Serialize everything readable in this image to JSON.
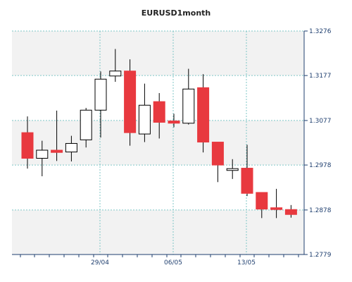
{
  "chart_data": {
    "type": "candlestick",
    "title": "EURUSD1month",
    "xlabel": "",
    "ylabel": "",
    "ylim": [
      1.2779,
      1.3276
    ],
    "y_ticks": [
      "1.3276",
      "1.3177",
      "1.3077",
      "1.2978",
      "1.2878",
      "1.2779"
    ],
    "x_ticks": [
      {
        "label": "29/04",
        "index": 5
      },
      {
        "label": "06/05",
        "index": 10
      },
      {
        "label": "13/05",
        "index": 15
      }
    ],
    "grid": true,
    "y_axis_side": "right",
    "colors": {
      "up_fill": "#ffffff",
      "up_stroke": "#000000",
      "down_fill": "#e8393f",
      "grid": "#7fc7c7",
      "band": "#f2f2f2",
      "axis": "#1f3f6f"
    },
    "candles": [
      {
        "open": 1.305,
        "high": 1.3086,
        "low": 1.297,
        "close": 1.2993
      },
      {
        "open": 1.2993,
        "high": 1.3032,
        "low": 1.2953,
        "close": 1.3011
      },
      {
        "open": 1.3011,
        "high": 1.3099,
        "low": 1.2987,
        "close": 1.3006
      },
      {
        "open": 1.3007,
        "high": 1.3043,
        "low": 1.2986,
        "close": 1.3026
      },
      {
        "open": 1.3034,
        "high": 1.3105,
        "low": 1.3017,
        "close": 1.31
      },
      {
        "open": 1.31,
        "high": 1.3186,
        "low": 1.3039,
        "close": 1.3169
      },
      {
        "open": 1.3176,
        "high": 1.3236,
        "low": 1.3163,
        "close": 1.3187
      },
      {
        "open": 1.3187,
        "high": 1.3213,
        "low": 1.3021,
        "close": 1.305
      },
      {
        "open": 1.3047,
        "high": 1.3159,
        "low": 1.3029,
        "close": 1.3111
      },
      {
        "open": 1.3119,
        "high": 1.3138,
        "low": 1.3037,
        "close": 1.3073
      },
      {
        "open": 1.3076,
        "high": 1.3092,
        "low": 1.3062,
        "close": 1.3071
      },
      {
        "open": 1.3071,
        "high": 1.3192,
        "low": 1.3068,
        "close": 1.3147
      },
      {
        "open": 1.315,
        "high": 1.318,
        "low": 1.3006,
        "close": 1.3029
      },
      {
        "open": 1.3029,
        "high": 1.3029,
        "low": 1.294,
        "close": 1.2978
      },
      {
        "open": 1.2966,
        "high": 1.2991,
        "low": 1.2947,
        "close": 1.297
      },
      {
        "open": 1.2971,
        "high": 1.3023,
        "low": 1.2909,
        "close": 1.2915
      },
      {
        "open": 1.2917,
        "high": 1.2917,
        "low": 1.286,
        "close": 1.288
      },
      {
        "open": 1.2883,
        "high": 1.2925,
        "low": 1.286,
        "close": 1.2879
      },
      {
        "open": 1.2879,
        "high": 1.2889,
        "low": 1.2861,
        "close": 1.2868
      }
    ]
  }
}
